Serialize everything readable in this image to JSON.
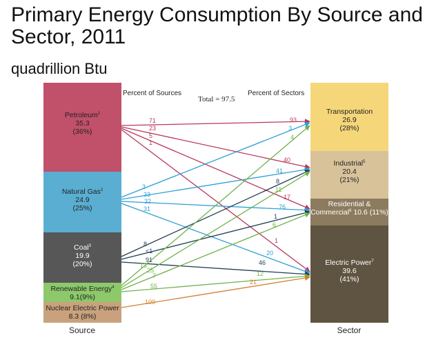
{
  "title": "Primary Energy Consumption By Source and Sector, 2011",
  "subtitle": "quadrillion Btu",
  "headers": {
    "sources": "Percent of Sources",
    "total": "Total = 97.5",
    "sectors": "Percent of Sectors"
  },
  "axis_labels": {
    "left": "Source",
    "right": "Sector"
  },
  "sources": [
    {
      "name": "Petroleum",
      "sup": "1",
      "value": "35.3",
      "pct": "(36%)",
      "color": "#c1506a"
    },
    {
      "name": "Natural Gas",
      "sup": "2",
      "value": "24.9",
      "pct": "(25%)",
      "color": "#5aaed2"
    },
    {
      "name": "Coal",
      "sup": "3",
      "value": "19.9",
      "pct": "(20%)",
      "color": "#575757"
    },
    {
      "name": "Renewable Energy",
      "sup": "4",
      "value": "9.1(9%)",
      "pct": "",
      "color": "#8dc96b"
    },
    {
      "name": "Nuclear Electric Power",
      "sup": "",
      "value": "8.3 (8%)",
      "pct": "",
      "color": "#c9a27d"
    }
  ],
  "sectors": [
    {
      "name": "Transportation",
      "sup": "",
      "value": "26.9",
      "pct": "(28%)",
      "color": "#f5d77a"
    },
    {
      "name": "Industrial",
      "sup": "5",
      "value": "20.4",
      "pct": "(21%)",
      "color": "#d8c29a"
    },
    {
      "name": "Residential & Commercial",
      "sup": "6",
      "value": "10.6 (11%)",
      "pct": "",
      "color": "#8c7b5e"
    },
    {
      "name": "Electric Power",
      "sup": "7",
      "value": "39.6",
      "pct": "(41%)",
      "color": "#5f5442"
    }
  ],
  "flow_colors": {
    "Petroleum": "#b8385c",
    "Natural Gas": "#2e9fd6",
    "Coal": "#1f3d52",
    "Renewable Energy": "#6fb24c",
    "Nuclear Electric Power": "#d2802e"
  },
  "chart_data": {
    "type": "flow",
    "units": "quadrillion Btu",
    "total": 97.5,
    "flows": [
      {
        "from": "Petroleum",
        "to": "Transportation",
        "pct_of_source": 71,
        "pct_of_sector": 93
      },
      {
        "from": "Petroleum",
        "to": "Industrial",
        "pct_of_source": 23,
        "pct_of_sector": 40
      },
      {
        "from": "Petroleum",
        "to": "Residential & Commercial",
        "pct_of_source": 5,
        "pct_of_sector": 17
      },
      {
        "from": "Petroleum",
        "to": "Electric Power",
        "pct_of_source": 1,
        "pct_of_sector": 1
      },
      {
        "from": "Natural Gas",
        "to": "Transportation",
        "pct_of_source": 3,
        "pct_of_sector": 3
      },
      {
        "from": "Natural Gas",
        "to": "Industrial",
        "pct_of_source": 33,
        "pct_of_sector": 41
      },
      {
        "from": "Natural Gas",
        "to": "Residential & Commercial",
        "pct_of_source": 32,
        "pct_of_sector": 76
      },
      {
        "from": "Natural Gas",
        "to": "Electric Power",
        "pct_of_source": 31,
        "pct_of_sector": 20
      },
      {
        "from": "Coal",
        "to": "Industrial",
        "pct_of_source": 8,
        "pct_of_sector": 8
      },
      {
        "from": "Coal",
        "to": "Residential & Commercial",
        "pct_of_source": "<1",
        "pct_of_sector": 1
      },
      {
        "from": "Coal",
        "to": "Electric Power",
        "pct_of_source": 91,
        "pct_of_sector": 46
      },
      {
        "from": "Renewable Energy",
        "to": "Transportation",
        "pct_of_source": 13,
        "pct_of_sector": 4
      },
      {
        "from": "Renewable Energy",
        "to": "Industrial",
        "pct_of_source": 25,
        "pct_of_sector": 11
      },
      {
        "from": "Renewable Energy",
        "to": "Residential & Commercial",
        "pct_of_source": 7,
        "pct_of_sector": 6
      },
      {
        "from": "Renewable Energy",
        "to": "Electric Power",
        "pct_of_source": 55,
        "pct_of_sector": 12
      },
      {
        "from": "Nuclear Electric Power",
        "to": "Electric Power",
        "pct_of_source": 100,
        "pct_of_sector": 21
      }
    ]
  }
}
